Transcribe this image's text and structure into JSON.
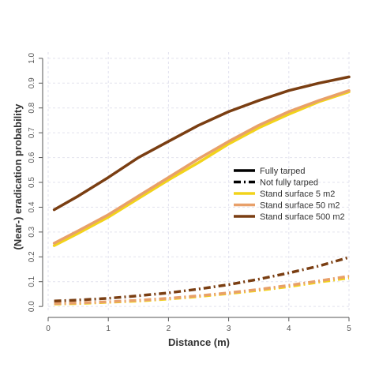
{
  "chart_data": {
    "type": "line",
    "xlabel": "Distance (m)",
    "ylabel": "(Near-) eradication probability",
    "xlim": [
      0,
      5
    ],
    "ylim": [
      -0.025,
      1.025
    ],
    "x_ticks": [
      "0",
      "1",
      "2",
      "3",
      "4",
      "5"
    ],
    "y_ticks": [
      "0.0",
      "0.1",
      "0.2",
      "0.3",
      "0.4",
      "0.5",
      "0.6",
      "0.7",
      "0.8",
      "0.9",
      "1.0"
    ],
    "grid": true,
    "legend_position": "right",
    "legend": {
      "styles": [
        {
          "label": "Fully tarped",
          "dash": "solid",
          "color": "#000000"
        },
        {
          "label": "Not fully tarped",
          "dash": "dashdot",
          "color": "#000000"
        }
      ],
      "colors": [
        {
          "label": "Stand surface 5 m2",
          "color": "#f2d31b"
        },
        {
          "label": "Stand surface 50 m2",
          "color": "#e8a06a"
        },
        {
          "label": "Stand surface 500 m2",
          "color": "#7a3e12"
        }
      ]
    },
    "x": [
      0.1,
      0.5,
      1,
      1.5,
      2,
      2.5,
      3,
      3.5,
      4,
      4.5,
      5
    ],
    "series": [
      {
        "name": "Stand surface 5 m2",
        "tarping": "Fully tarped",
        "color": "#f2d31b",
        "dash": "solid",
        "values": [
          0.245,
          0.295,
          0.36,
          0.435,
          0.51,
          0.58,
          0.655,
          0.72,
          0.775,
          0.825,
          0.865
        ]
      },
      {
        "name": "Stand surface 50 m2",
        "tarping": "Fully tarped",
        "color": "#e8a06a",
        "dash": "solid",
        "values": [
          0.255,
          0.305,
          0.37,
          0.445,
          0.52,
          0.595,
          0.665,
          0.73,
          0.785,
          0.83,
          0.87
        ]
      },
      {
        "name": "Stand surface 500 m2",
        "tarping": "Fully tarped",
        "color": "#7a3e12",
        "dash": "solid",
        "values": [
          0.39,
          0.445,
          0.52,
          0.6,
          0.665,
          0.73,
          0.785,
          0.83,
          0.87,
          0.9,
          0.925
        ]
      },
      {
        "name": "Stand surface 5 m2",
        "tarping": "Not fully tarped",
        "color": "#f2d31b",
        "dash": "dashdot",
        "values": [
          0.01,
          0.012,
          0.017,
          0.022,
          0.03,
          0.04,
          0.052,
          0.065,
          0.08,
          0.098,
          0.115
        ]
      },
      {
        "name": "Stand surface 50 m2",
        "tarping": "Not fully tarped",
        "color": "#e8a06a",
        "dash": "dashdot",
        "values": [
          0.012,
          0.014,
          0.019,
          0.025,
          0.033,
          0.043,
          0.055,
          0.069,
          0.085,
          0.103,
          0.122
        ]
      },
      {
        "name": "Stand surface 500 m2",
        "tarping": "Not fully tarped",
        "color": "#7a3e12",
        "dash": "dashdot",
        "values": [
          0.022,
          0.026,
          0.033,
          0.043,
          0.055,
          0.07,
          0.088,
          0.11,
          0.135,
          0.163,
          0.198
        ]
      }
    ]
  }
}
